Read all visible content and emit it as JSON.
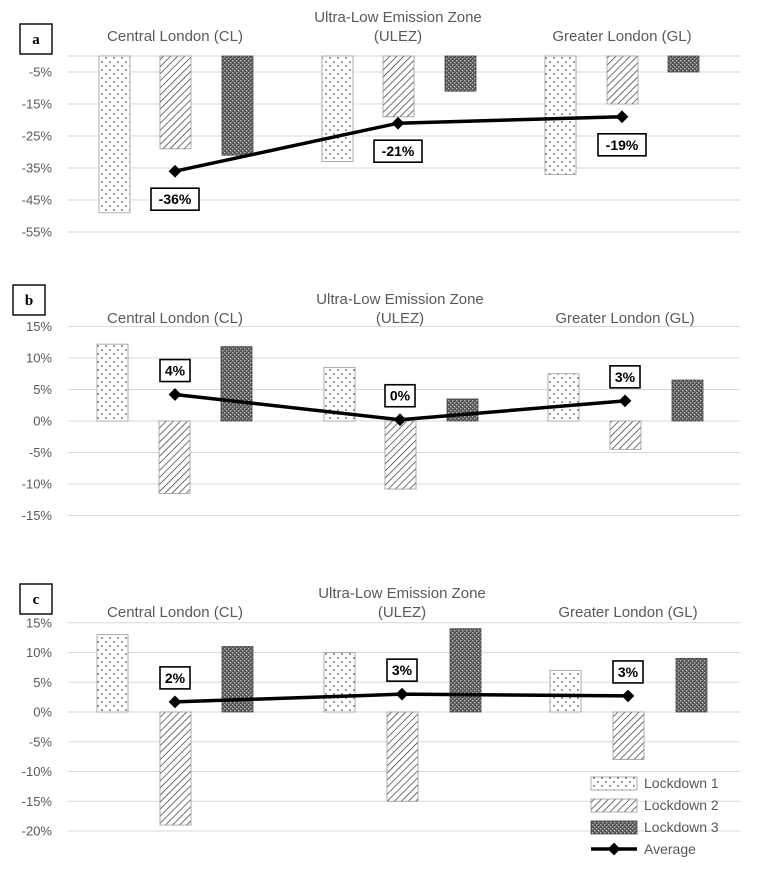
{
  "chart_data": [
    {
      "type": "bar",
      "panel": "a",
      "categories": [
        "Central London (CL)",
        "Ultra-Low Emission Zone (ULEZ)",
        "Greater London (GL)"
      ],
      "category_lines": [
        [
          "Central London (CL)"
        ],
        [
          "Ultra-Low Emission Zone",
          "(ULEZ)"
        ],
        [
          "Greater London (GL)"
        ]
      ],
      "series": [
        {
          "name": "Lockdown 1",
          "values": [
            -49,
            -33,
            -37
          ]
        },
        {
          "name": "Lockdown 2",
          "values": [
            -29,
            -19,
            -15
          ]
        },
        {
          "name": "Lockdown 3",
          "values": [
            -31,
            -11,
            -5
          ]
        }
      ],
      "average": {
        "name": "Average",
        "values": [
          -36,
          -21,
          -19
        ],
        "labels": [
          "-36%",
          "-21%",
          "-19%"
        ]
      },
      "yticks": [
        -5,
        -15,
        -25,
        -35,
        -45,
        -55
      ],
      "ytick_labels": [
        "-5%",
        "-15%",
        "-25%",
        "-35%",
        "-45%",
        "-55%"
      ],
      "ylim": [
        -55,
        0
      ],
      "grid": true
    },
    {
      "type": "bar",
      "panel": "b",
      "categories": [
        "Central London (CL)",
        "Ultra-Low Emission Zone (ULEZ)",
        "Greater London (GL)"
      ],
      "category_lines": [
        [
          "Central London (CL)"
        ],
        [
          "Ultra-Low Emission Zone",
          "(ULEZ)"
        ],
        [
          "Greater London (GL)"
        ]
      ],
      "series": [
        {
          "name": "Lockdown 1",
          "values": [
            12.2,
            8.5,
            7.5
          ]
        },
        {
          "name": "Lockdown 2",
          "values": [
            -11.5,
            -10.8,
            -4.5
          ]
        },
        {
          "name": "Lockdown 3",
          "values": [
            11.8,
            3.5,
            6.5
          ]
        }
      ],
      "average": {
        "name": "Average",
        "values": [
          4.2,
          0.2,
          3.2
        ],
        "labels": [
          "4%",
          "0%",
          "3%"
        ]
      },
      "yticks": [
        15,
        10,
        5,
        0,
        -5,
        -10,
        -15
      ],
      "ytick_labels": [
        "15%",
        "10%",
        "5%",
        "0%",
        "-5%",
        "-10%",
        "-15%"
      ],
      "ylim": [
        -15,
        15
      ],
      "grid": true
    },
    {
      "type": "bar",
      "panel": "c",
      "categories": [
        "Central London (CL)",
        "Ultra-Low Emission Zone (ULEZ)",
        "Greater London (GL)"
      ],
      "category_lines": [
        [
          "Central London (CL)"
        ],
        [
          "Ultra-Low Emission Zone",
          "(ULEZ)"
        ],
        [
          "Greater London (GL)"
        ]
      ],
      "series": [
        {
          "name": "Lockdown 1",
          "values": [
            13,
            10,
            7
          ]
        },
        {
          "name": "Lockdown 2",
          "values": [
            -19,
            -15,
            -8
          ]
        },
        {
          "name": "Lockdown 3",
          "values": [
            11,
            14,
            9
          ]
        }
      ],
      "average": {
        "name": "Average",
        "values": [
          1.7,
          3,
          2.7
        ],
        "labels": [
          "2%",
          "3%",
          "3%"
        ]
      },
      "yticks": [
        15,
        10,
        5,
        0,
        -5,
        -10,
        -15,
        -20
      ],
      "ytick_labels": [
        "15%",
        "10%",
        "5%",
        "0%",
        "-5%",
        "-10%",
        "-15%",
        "-20%"
      ],
      "ylim": [
        -20,
        15
      ],
      "grid": true,
      "legend": "bottom-right"
    }
  ],
  "legend": {
    "items": [
      "Lockdown 1",
      "Lockdown 2",
      "Lockdown 3",
      "Average"
    ]
  }
}
